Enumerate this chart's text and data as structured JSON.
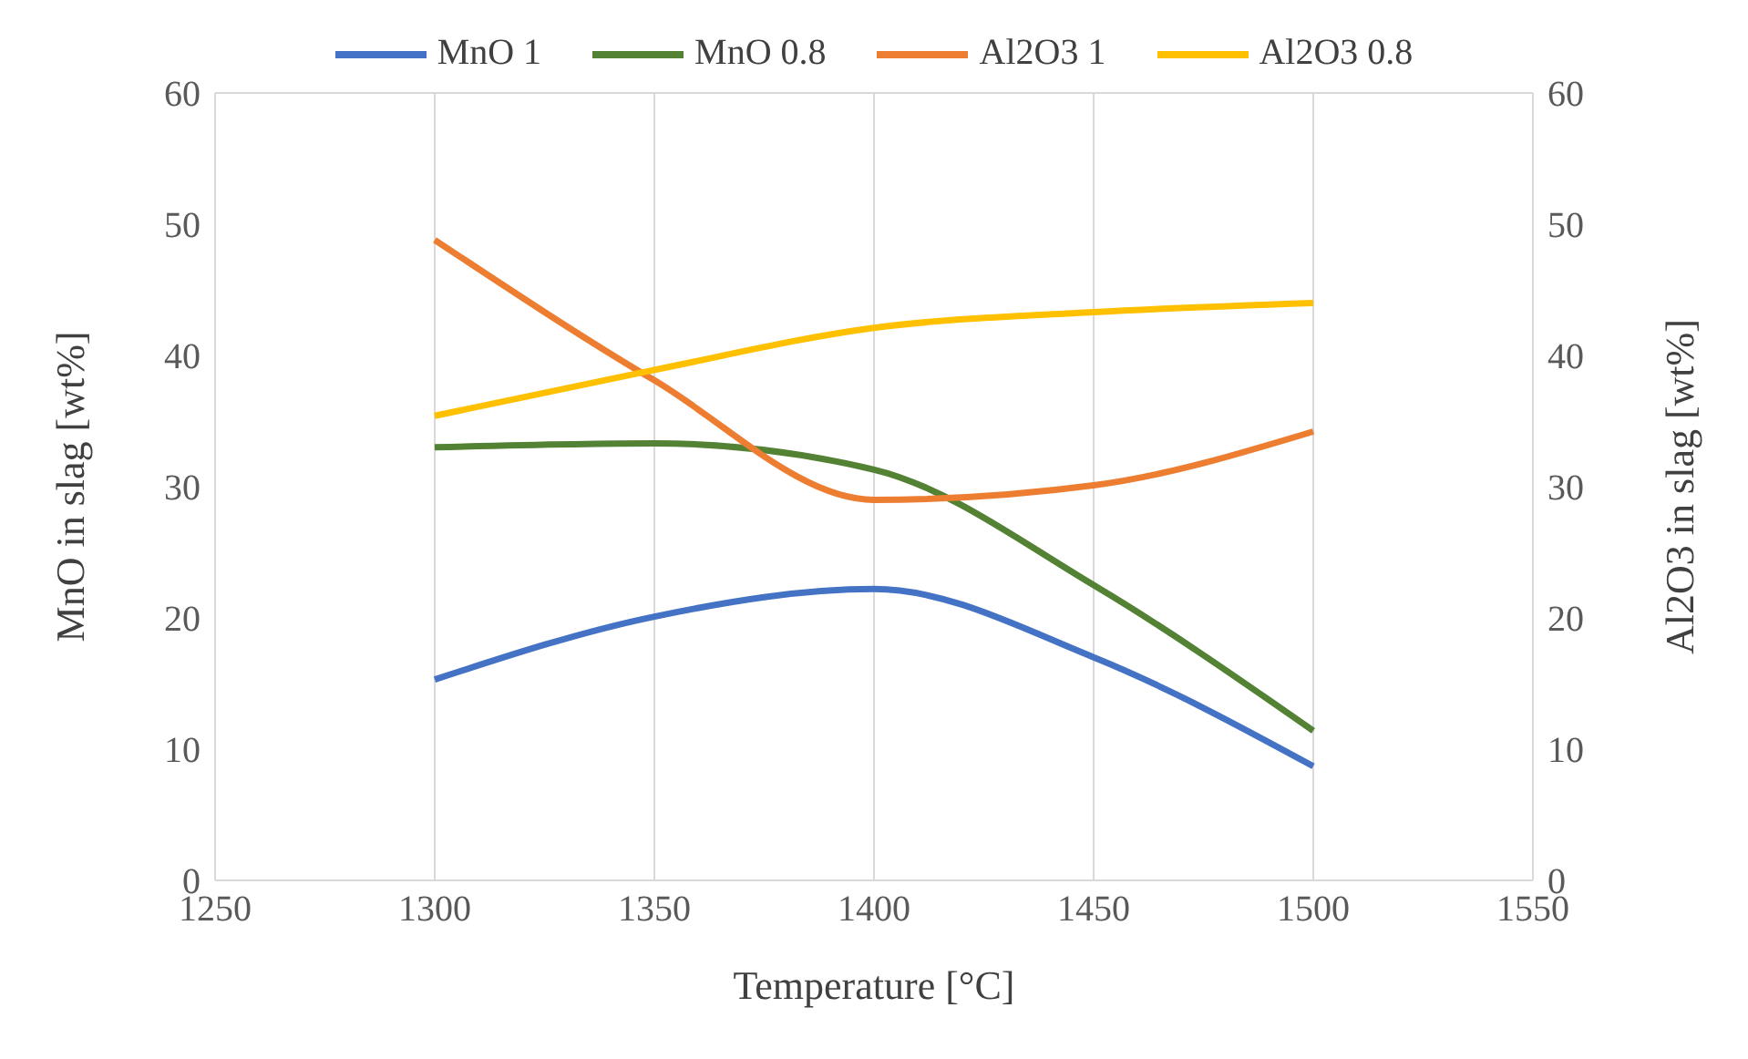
{
  "chart_data": {
    "type": "line",
    "xlabel": "Temperature [°C]",
    "ylabel": "MnO in slag [wt%]",
    "y2label": "Al2O3 in slag [wt%]",
    "x": [
      1300,
      1350,
      1400,
      1450,
      1500
    ],
    "xlim": [
      1250,
      1550
    ],
    "xticks": [
      1250,
      1300,
      1350,
      1400,
      1450,
      1500,
      1550
    ],
    "ylim": [
      0,
      60
    ],
    "yticks": [
      0,
      10,
      20,
      30,
      40,
      50,
      60
    ],
    "y2lim": [
      0,
      60
    ],
    "y2ticks": [
      0,
      10,
      20,
      30,
      40,
      50,
      60
    ],
    "grid": true,
    "legend": "top",
    "marker": "none",
    "line_style": "solid",
    "series": [
      {
        "name": "MnO 1",
        "color": "#4472c4",
        "values": [
          15.3,
          20.1,
          22.2,
          17.0,
          8.7
        ]
      },
      {
        "name": "MnO 0.8",
        "color": "#548235",
        "values": [
          33.0,
          33.3,
          31.3,
          22.5,
          11.4
        ]
      },
      {
        "name": "Al2O3 1",
        "color": "#ed7d31",
        "axis": "y2",
        "values": [
          48.8,
          38.1,
          29.0,
          30.1,
          34.2
        ]
      },
      {
        "name": "Al2O3 0.8",
        "color": "#ffc000",
        "axis": "y2",
        "values": [
          35.4,
          38.9,
          42.1,
          43.3,
          44.0
        ]
      }
    ]
  }
}
